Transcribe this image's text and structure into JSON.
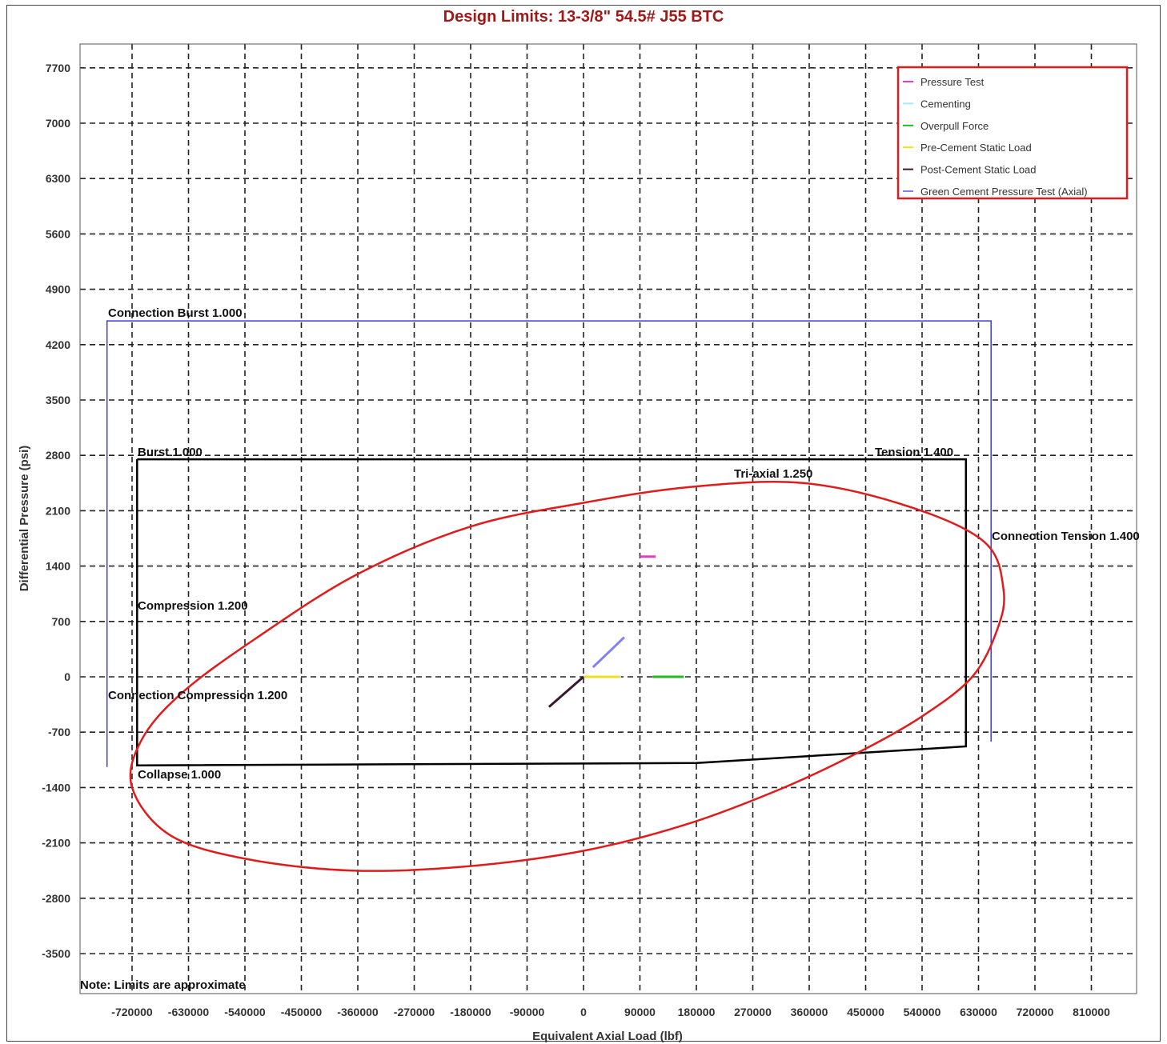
{
  "chart_data": {
    "type": "line",
    "title": "Design Limits: 13-3/8\" 54.5# J55 BTC",
    "xlabel": "Equivalent Axial Load (lbf)",
    "ylabel": "Differential Pressure (psi)",
    "xlim": [
      -770000,
      880000
    ],
    "ylim": [
      -3850,
      7700
    ],
    "x_ticks": [
      -720000,
      -630000,
      -540000,
      -450000,
      -360000,
      -270000,
      -180000,
      -90000,
      0,
      90000,
      180000,
      270000,
      360000,
      450000,
      540000,
      630000,
      720000,
      810000
    ],
    "y_ticks": [
      7700,
      7000,
      6300,
      5600,
      4900,
      4200,
      3500,
      2800,
      2100,
      1400,
      700,
      0,
      -700,
      -1400,
      -2100,
      -2800,
      -3500
    ],
    "grid": true,
    "legend_position": "top-right",
    "note": "Note: Limits are approximate",
    "colors": {
      "title": "#a01818",
      "triaxial": "#e01b1b",
      "connection_limits": "#3b3bd6",
      "pipe_limits": "#000000",
      "legend_border": "#e01b1b"
    },
    "limits": {
      "connection_envelope": {
        "points": [
          [
            -760000,
            -1140
          ],
          [
            -760000,
            4500
          ],
          [
            650000,
            4500
          ],
          [
            650000,
            -820
          ]
        ],
        "labels": {
          "burst": "Connection Burst 1.000",
          "tension": "Connection Tension 1.400",
          "compression": "Connection Compression 1.200"
        }
      },
      "pipe_envelope": {
        "points": [
          [
            -712000,
            2750
          ],
          [
            610000,
            2750
          ],
          [
            610000,
            -880
          ],
          [
            180000,
            -1090
          ],
          [
            -712000,
            -1120
          ],
          [
            -712000,
            2750
          ]
        ],
        "labels": {
          "burst": "Burst 1.000",
          "tension": "Tension 1.400",
          "compression": "Compression 1.200",
          "collapse": "Collapse 1.000"
        }
      },
      "triaxial": {
        "label": "Tri-axial 1.250",
        "points": [
          [
            670000,
            1100
          ],
          [
            660000,
            600
          ],
          [
            620000,
            0
          ],
          [
            540000,
            -500
          ],
          [
            440000,
            -950
          ],
          [
            320000,
            -1400
          ],
          [
            170000,
            -1850
          ],
          [
            0,
            -2200
          ],
          [
            -190000,
            -2400
          ],
          [
            -370000,
            -2450
          ],
          [
            -540000,
            -2300
          ],
          [
            -660000,
            -2000
          ],
          [
            -720000,
            -1400
          ],
          [
            -705000,
            -800
          ],
          [
            -640000,
            -200
          ],
          [
            -520000,
            500
          ],
          [
            -360000,
            1300
          ],
          [
            -180000,
            1900
          ],
          [
            0,
            2200
          ],
          [
            170000,
            2400
          ],
          [
            350000,
            2450
          ],
          [
            520000,
            2150
          ],
          [
            640000,
            1700
          ],
          [
            670000,
            1100
          ]
        ]
      }
    },
    "series": [
      {
        "name": "Pressure Test",
        "color": "#e040c0",
        "x": [
          90000,
          115000
        ],
        "y": [
          1520,
          1520
        ]
      },
      {
        "name": "Cementing",
        "color": "#a8e8f0",
        "x": [
          0,
          60000
        ],
        "y": [
          0,
          0
        ]
      },
      {
        "name": "Overpull Force",
        "color": "#22bb22",
        "x": [
          110000,
          160000
        ],
        "y": [
          0,
          0
        ]
      },
      {
        "name": "Pre-Cement Static Load",
        "color": "#f0e020",
        "x": [
          0,
          58000
        ],
        "y": [
          0,
          0
        ]
      },
      {
        "name": "Post-Cement Static Load",
        "color": "#3a1830",
        "x": [
          -55000,
          0
        ],
        "y": [
          -380,
          0
        ]
      },
      {
        "name": "Green Cement Pressure Test (Axial)",
        "color": "#8080f0",
        "x": [
          15000,
          65000
        ],
        "y": [
          120,
          500
        ]
      }
    ]
  }
}
